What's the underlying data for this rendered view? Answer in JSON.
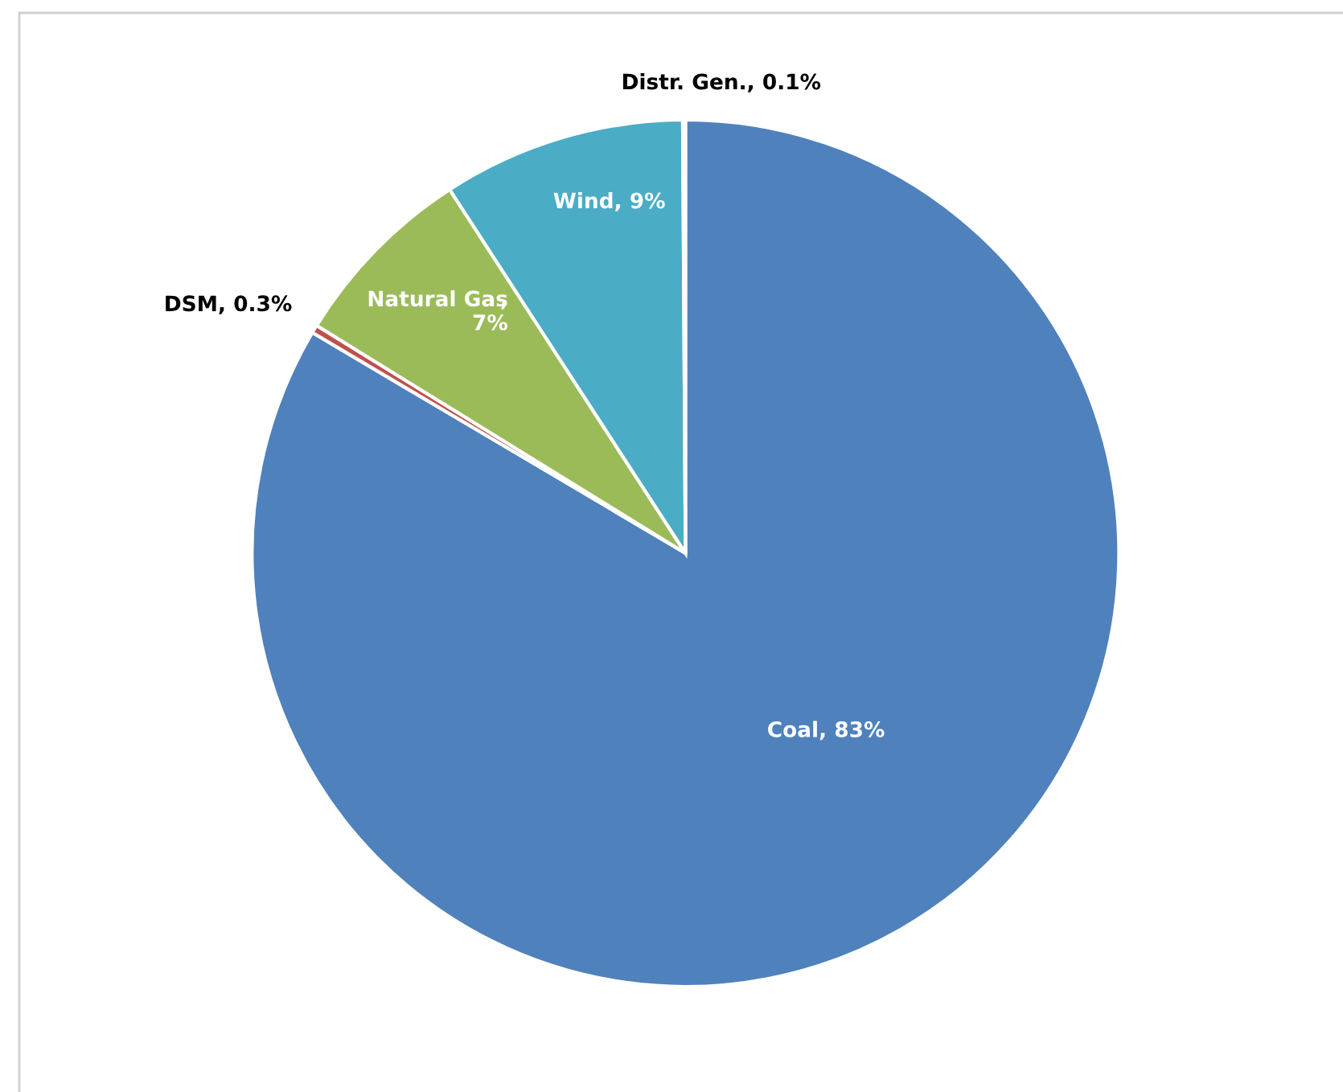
{
  "chart_data": {
    "type": "pie",
    "categories": [
      "Coal",
      "DSM",
      "Natural Gas",
      "Wind",
      "Distr. Gen."
    ],
    "values": [
      83,
      0.3,
      7,
      9,
      0.1
    ],
    "colors": [
      "#4f81bd",
      "#c0504d",
      "#9bbb59",
      "#4bacc6",
      "#8064a2"
    ],
    "value_labels": [
      ", 83%",
      ", 0.3%",
      ",\n7%",
      ", 9%",
      ", 0.1%"
    ],
    "legend": false
  }
}
